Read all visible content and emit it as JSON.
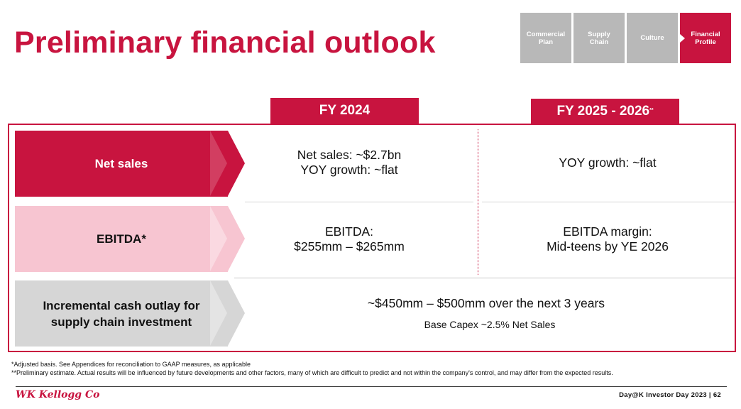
{
  "page_title": "Preliminary financial outlook",
  "nav_tabs": [
    {
      "label": "Commercial\nPlan",
      "active": false
    },
    {
      "label": "Supply\nChain",
      "active": false
    },
    {
      "label": "Culture",
      "active": false
    },
    {
      "label": "Financial\nProfile",
      "active": true
    }
  ],
  "columns": {
    "fy2024": "FY 2024",
    "fy2025_2026": "FY 2025 - 2026",
    "fy2025_2026_mark": "**"
  },
  "rows": {
    "net_sales": {
      "label": "Net sales",
      "fy2024_line1": "Net sales: ~$2.7bn",
      "fy2024_line2": "YOY growth: ~flat",
      "fy2025_2026": "YOY growth: ~flat"
    },
    "ebitda": {
      "label": "EBITDA*",
      "fy2024_line1": "EBITDA:",
      "fy2024_line2": "$255mm – $265mm",
      "fy2025_2026_line1": "EBITDA margin:",
      "fy2025_2026_line2": "Mid-teens by YE 2026"
    },
    "cash_outlay": {
      "label_line1": "Incremental cash outlay for",
      "label_line2": "supply chain investment",
      "value": "~$450mm – $500mm over the next 3 years",
      "subvalue": "Base Capex ~2.5% Net Sales"
    }
  },
  "footnotes": {
    "adjusted": "*Adjusted basis. See Appendices for reconciliation to GAAP measures, as applicable",
    "preliminary": "**Preliminary estimate.  Actual results will be influenced by future developments and other factors, many of which are difficult to predict and not within the company's control, and may differ from the expected results."
  },
  "footer": {
    "logo_text": "WK Kellogg Co",
    "event": "Day@K Investor Day 2023 | 62"
  },
  "colors": {
    "brand_red": "#c8143f",
    "pink": "#f7c5d1",
    "gray": "#d6d6d6",
    "tab_gray": "#b8b8b8"
  }
}
